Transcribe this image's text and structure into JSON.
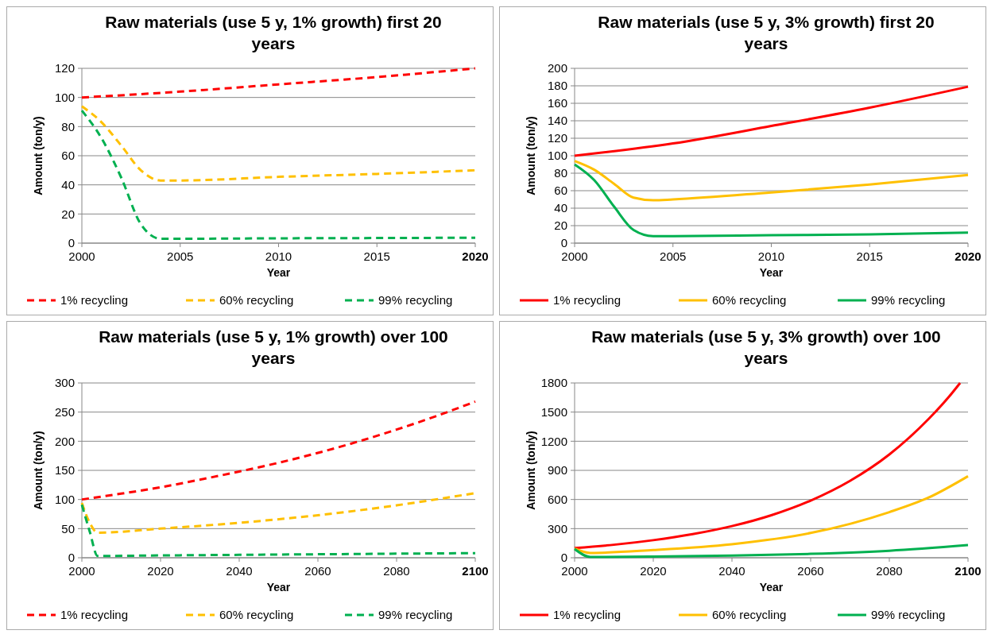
{
  "chart_data": [
    {
      "type": "line",
      "title": "Raw materials (use 5 y, 1% growth) first 20 years",
      "xlabel": "Year",
      "ylabel": "Amount (ton/y)",
      "xlim": [
        2000,
        2020
      ],
      "xticks": [
        2000,
        2005,
        2010,
        2015,
        2020
      ],
      "ylim": [
        0,
        120
      ],
      "yticks": [
        0,
        20,
        40,
        60,
        80,
        100,
        120
      ],
      "grid": "y",
      "legend": "bottom",
      "line_style": "dashed",
      "series": [
        {
          "name": "1% recycling",
          "color": "#ff0000",
          "x": [
            2000,
            2005,
            2010,
            2015,
            2020
          ],
          "values": [
            100,
            104,
            109,
            114,
            120
          ]
        },
        {
          "name": "60% recycling",
          "color": "#ffc000",
          "x": [
            2000,
            2001,
            2002,
            2003,
            2004,
            2005,
            2010,
            2015,
            2020
          ],
          "values": [
            94,
            83,
            67,
            50,
            43,
            43,
            45.5,
            47.5,
            50
          ]
        },
        {
          "name": "99% recycling",
          "color": "#00b050",
          "x": [
            2000,
            2001,
            2002,
            2003,
            2004,
            2005,
            2010,
            2015,
            2020
          ],
          "values": [
            91,
            72,
            45,
            13,
            3,
            3,
            3.3,
            3.5,
            3.7
          ]
        }
      ]
    },
    {
      "type": "line",
      "title": "Raw materials (use 5 y, 3% growth) first 20 years",
      "xlabel": "Year",
      "ylabel": "Amount (ton/y)",
      "xlim": [
        2000,
        2020
      ],
      "xticks": [
        2000,
        2005,
        2010,
        2015,
        2020
      ],
      "ylim": [
        0,
        200
      ],
      "yticks": [
        0,
        20,
        40,
        60,
        80,
        100,
        120,
        140,
        160,
        180,
        200
      ],
      "grid": "y",
      "legend": "bottom",
      "line_style": "solid",
      "series": [
        {
          "name": "1% recycling",
          "color": "#ff0000",
          "x": [
            2000,
            2005,
            2010,
            2015,
            2020
          ],
          "values": [
            100,
            114,
            134,
            155,
            179
          ]
        },
        {
          "name": "60% recycling",
          "color": "#ffc000",
          "x": [
            2000,
            2001,
            2002,
            2003,
            2004,
            2005,
            2010,
            2015,
            2020
          ],
          "values": [
            94,
            84,
            68,
            52,
            49,
            50,
            58,
            67,
            78
          ]
        },
        {
          "name": "99% recycling",
          "color": "#00b050",
          "x": [
            2000,
            2001,
            2002,
            2003,
            2004,
            2005,
            2010,
            2015,
            2020
          ],
          "values": [
            90,
            72,
            42,
            15,
            8,
            8,
            9,
            10,
            12
          ]
        }
      ]
    },
    {
      "type": "line",
      "title": "Raw materials (use 5 y, 1% growth) over 100 years",
      "xlabel": "Year",
      "ylabel": "Amount (ton/y)",
      "xlim": [
        2000,
        2100
      ],
      "xticks": [
        2000,
        2020,
        2040,
        2060,
        2080,
        2100
      ],
      "ylim": [
        0,
        300
      ],
      "yticks": [
        0,
        50,
        100,
        150,
        200,
        250,
        300
      ],
      "grid": "y",
      "legend": "bottom",
      "line_style": "dashed",
      "series": [
        {
          "name": "1% recycling",
          "color": "#ff0000",
          "x": [
            2000,
            2010,
            2020,
            2030,
            2040,
            2050,
            2060,
            2070,
            2080,
            2090,
            2100
          ],
          "values": [
            100,
            110,
            121,
            134,
            148,
            163,
            180,
            199,
            220,
            243,
            268
          ]
        },
        {
          "name": "60% recycling",
          "color": "#ffc000",
          "x": [
            2000,
            2002,
            2004,
            2020,
            2040,
            2060,
            2080,
            2100
          ],
          "values": [
            94,
            60,
            43,
            50,
            60,
            73,
            90,
            111
          ]
        },
        {
          "name": "99% recycling",
          "color": "#00b050",
          "x": [
            2000,
            2002,
            2004,
            2020,
            2040,
            2060,
            2080,
            2100
          ],
          "values": [
            91,
            45,
            3,
            4,
            5,
            6,
            7,
            8
          ]
        }
      ]
    },
    {
      "type": "line",
      "title": "Raw materials (use 5 y, 3% growth) over 100 years",
      "xlabel": "Year",
      "ylabel": "Amount (ton/y)",
      "xlim": [
        2000,
        2100
      ],
      "xticks": [
        2000,
        2020,
        2040,
        2060,
        2080,
        2100
      ],
      "ylim": [
        0,
        1800
      ],
      "yticks": [
        0,
        300,
        600,
        900,
        1200,
        1500,
        1800
      ],
      "grid": "y",
      "legend": "bottom",
      "line_style": "solid",
      "series": [
        {
          "name": "1% recycling",
          "color": "#ff0000",
          "x": [
            2000,
            2010,
            2020,
            2030,
            2040,
            2050,
            2060,
            2070,
            2080,
            2090,
            2095,
            2098
          ],
          "values": [
            100,
            134,
            181,
            243,
            326,
            438,
            589,
            792,
            1064,
            1430,
            1650,
            1800
          ]
        },
        {
          "name": "60% recycling",
          "color": "#ffc000",
          "x": [
            2000,
            2004,
            2020,
            2040,
            2060,
            2080,
            2090,
            2100
          ],
          "values": [
            94,
            50,
            80,
            140,
            255,
            470,
            620,
            840
          ]
        },
        {
          "name": "99% recycling",
          "color": "#00b050",
          "x": [
            2000,
            2004,
            2020,
            2040,
            2060,
            2080,
            2100
          ],
          "values": [
            90,
            8,
            12,
            22,
            40,
            72,
            130
          ]
        }
      ]
    }
  ]
}
